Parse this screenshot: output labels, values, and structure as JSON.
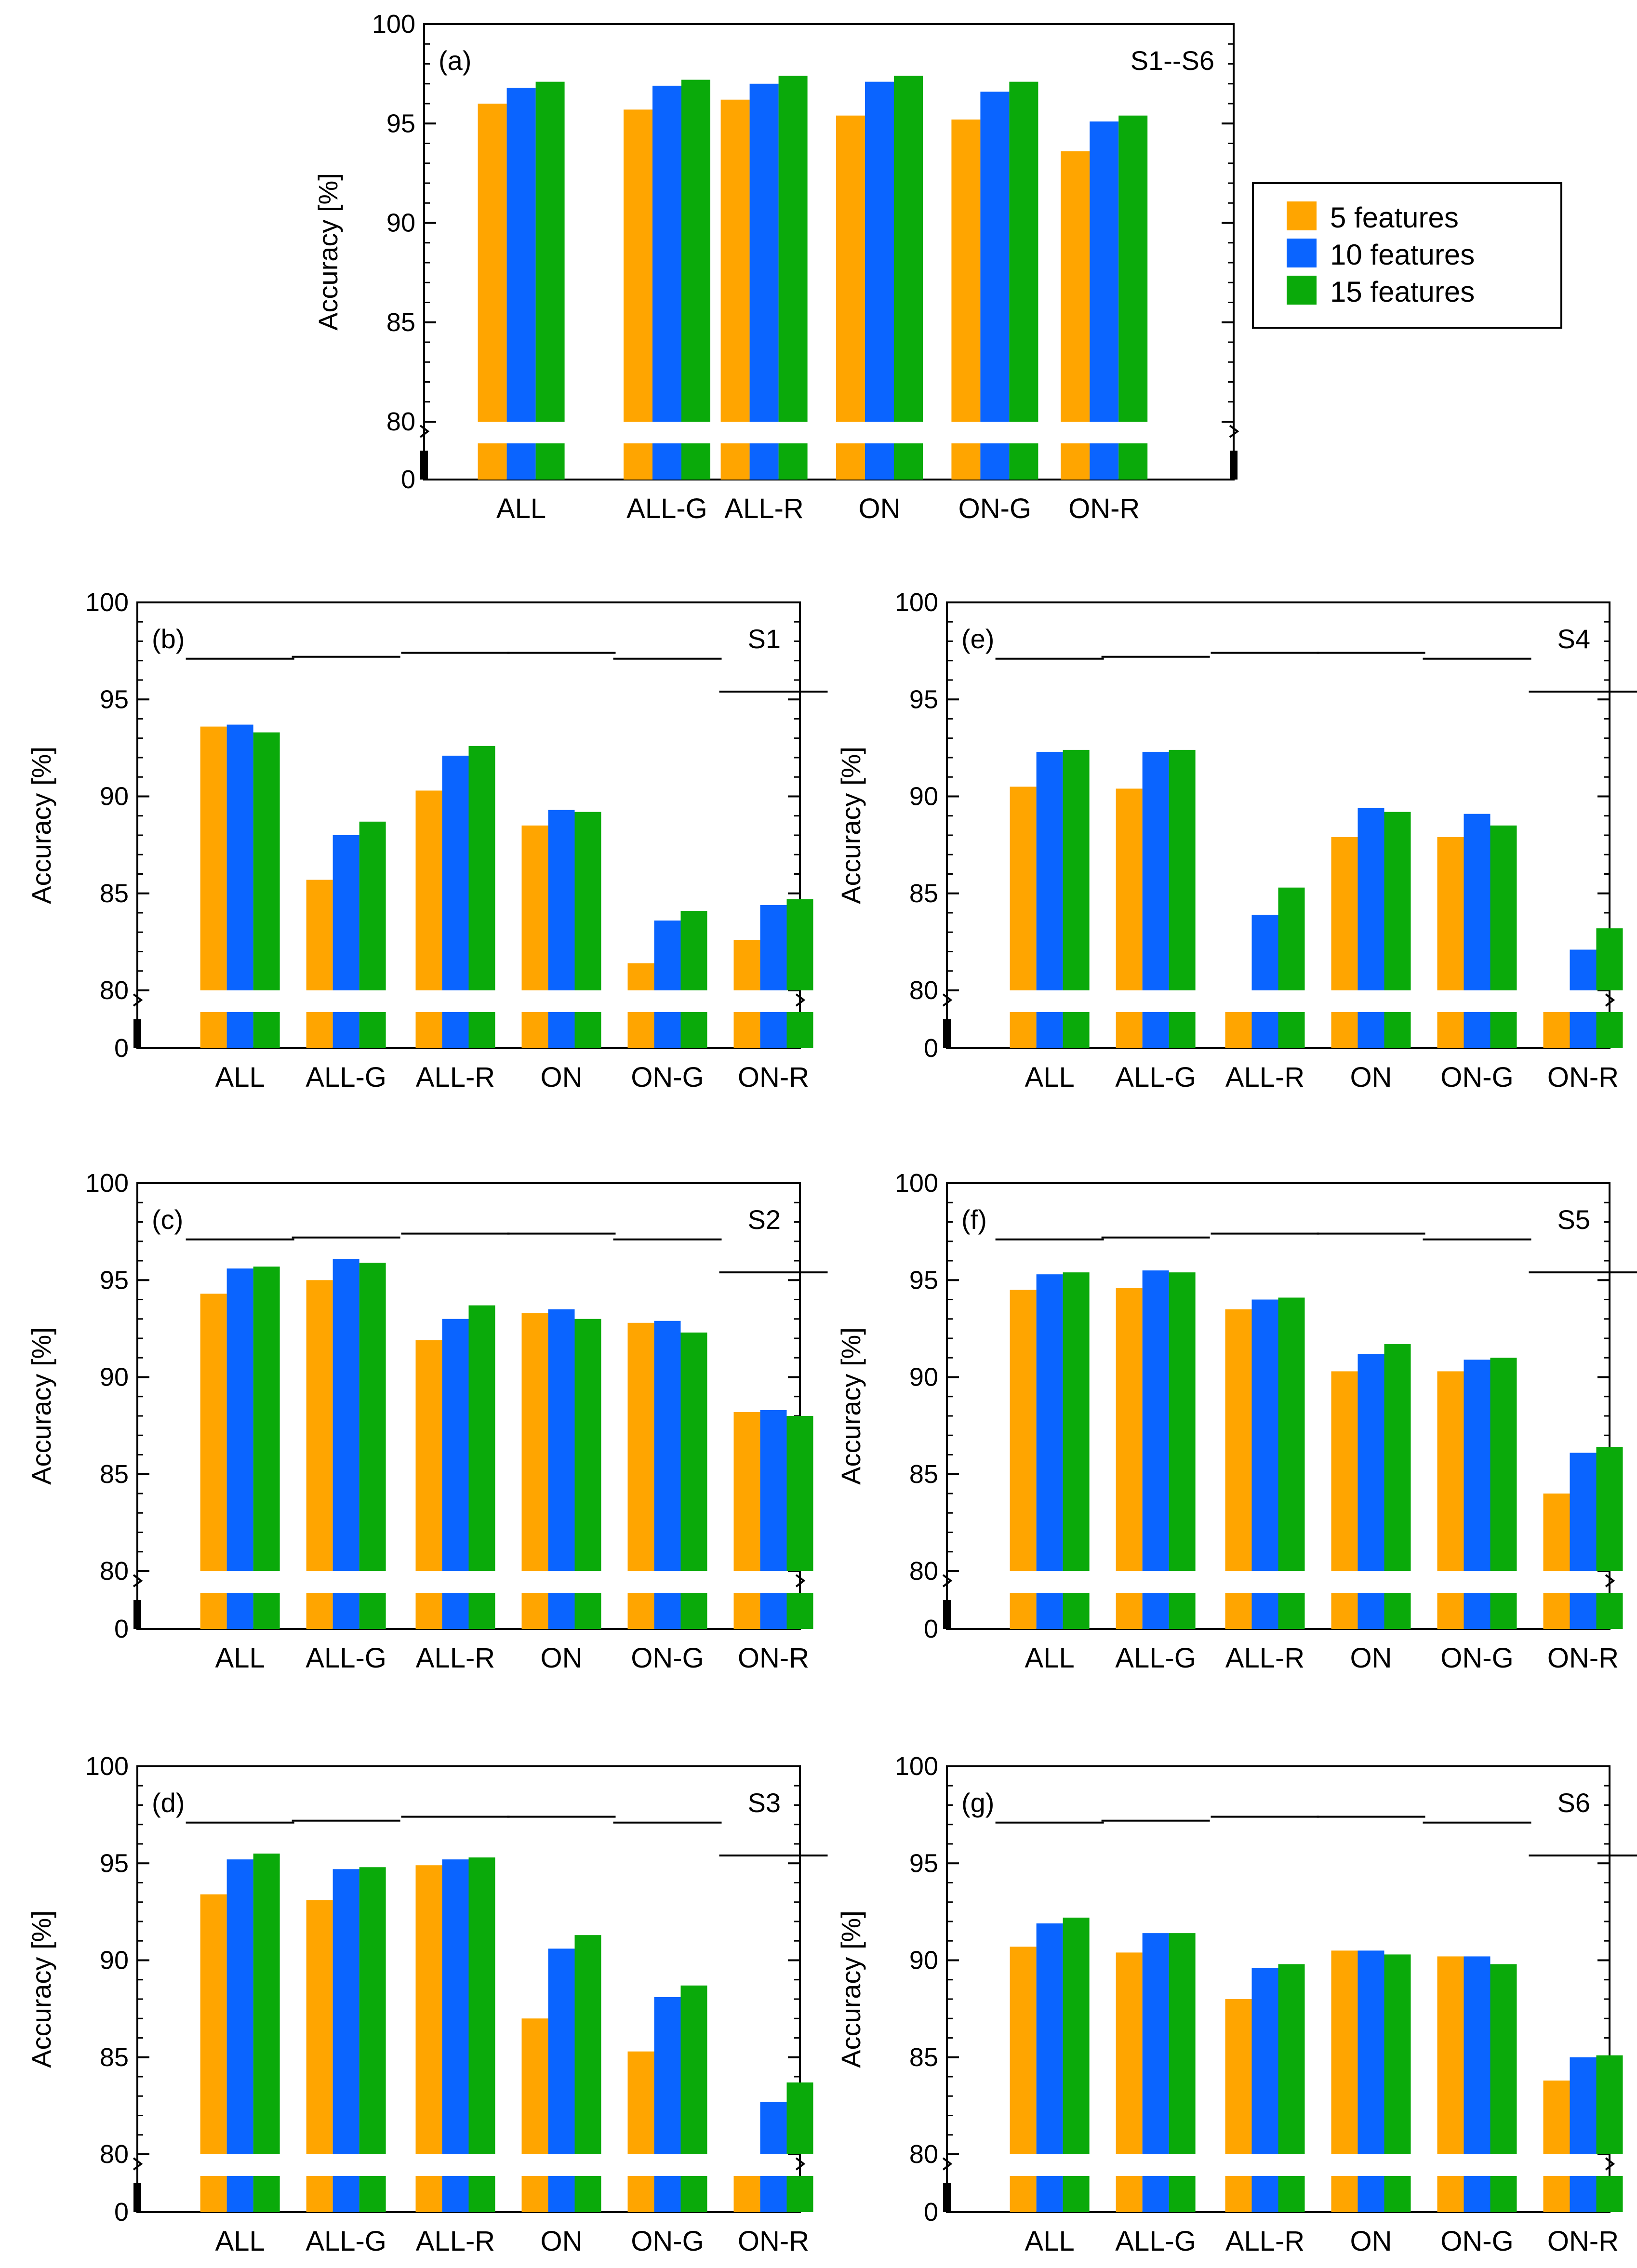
{
  "colors": {
    "s5": "#FFA500",
    "s10": "#0A64FF",
    "s15": "#0AAA0A",
    "s15cap": "#55A80A"
  },
  "legend": [
    "5 features",
    "10 features",
    "15 features"
  ],
  "y_axis_label": "Accuracy [%]",
  "chart_data": [
    {
      "type": "bar",
      "panel": "(a)",
      "subject": "S1--S6",
      "categories": [
        "ALL",
        "ALL-G",
        "ALL-R",
        "ON",
        "ON-G",
        "ON-R"
      ],
      "ylabel": "Accuracy [%]",
      "ylim": [
        80,
        100
      ],
      "yticks": [
        0,
        80,
        85,
        90,
        95,
        100
      ],
      "axis_break": true,
      "series": [
        {
          "name": "5 features",
          "values": [
            96.0,
            95.7,
            96.2,
            95.4,
            95.2,
            93.6
          ]
        },
        {
          "name": "10 features",
          "values": [
            96.8,
            96.9,
            97.0,
            97.1,
            96.6,
            95.1
          ]
        },
        {
          "name": "15 features",
          "values": [
            97.1,
            97.2,
            97.4,
            97.4,
            97.1,
            95.4
          ]
        }
      ]
    },
    {
      "type": "bar",
      "panel": "(b)",
      "subject": "S1",
      "categories": [
        "ALL",
        "ALL-G",
        "ALL-R",
        "ON",
        "ON-G",
        "ON-R"
      ],
      "ylabel": "Accuracy [%]",
      "ylim": [
        80,
        100
      ],
      "yticks": [
        0,
        80,
        85,
        90,
        95,
        100
      ],
      "axis_break": true,
      "reference": [
        97.1,
        97.2,
        97.4,
        97.4,
        97.1,
        95.4
      ],
      "series": [
        {
          "name": "5 features",
          "values": [
            93.6,
            85.7,
            90.3,
            88.5,
            81.4,
            82.6
          ]
        },
        {
          "name": "10 features",
          "values": [
            93.7,
            88.0,
            92.1,
            89.3,
            83.6,
            84.4
          ]
        },
        {
          "name": "15 features",
          "values": [
            93.3,
            88.7,
            92.6,
            89.2,
            84.1,
            84.7
          ]
        }
      ]
    },
    {
      "type": "bar",
      "panel": "(c)",
      "subject": "S2",
      "categories": [
        "ALL",
        "ALL-G",
        "ALL-R",
        "ON",
        "ON-G",
        "ON-R"
      ],
      "ylabel": "Accuracy [%]",
      "ylim": [
        80,
        100
      ],
      "yticks": [
        0,
        80,
        85,
        90,
        95,
        100
      ],
      "axis_break": true,
      "reference": [
        97.1,
        97.2,
        97.4,
        97.4,
        97.1,
        95.4
      ],
      "series": [
        {
          "name": "5 features",
          "values": [
            94.3,
            95.0,
            91.9,
            93.3,
            92.8,
            88.2
          ]
        },
        {
          "name": "10 features",
          "values": [
            95.6,
            96.1,
            93.0,
            93.5,
            92.9,
            88.3
          ]
        },
        {
          "name": "15 features",
          "values": [
            95.7,
            95.9,
            93.7,
            93.0,
            92.3,
            88.0
          ]
        }
      ]
    },
    {
      "type": "bar",
      "panel": "(d)",
      "subject": "S3",
      "categories": [
        "ALL",
        "ALL-G",
        "ALL-R",
        "ON",
        "ON-G",
        "ON-R"
      ],
      "ylabel": "Accuracy [%]",
      "ylim": [
        80,
        100
      ],
      "yticks": [
        0,
        80,
        85,
        90,
        95,
        100
      ],
      "axis_break": true,
      "reference": [
        97.1,
        97.2,
        97.4,
        97.4,
        97.1,
        95.4
      ],
      "series": [
        {
          "name": "5 features",
          "values": [
            93.4,
            93.1,
            94.9,
            87.0,
            85.3,
            79.0
          ]
        },
        {
          "name": "10 features",
          "values": [
            95.2,
            94.7,
            95.2,
            90.6,
            88.1,
            82.7
          ]
        },
        {
          "name": "15 features",
          "values": [
            95.5,
            94.8,
            95.3,
            91.3,
            88.7,
            83.7
          ]
        }
      ]
    },
    {
      "type": "bar",
      "panel": "(e)",
      "subject": "S4",
      "categories": [
        "ALL",
        "ALL-G",
        "ALL-R",
        "ON",
        "ON-G",
        "ON-R"
      ],
      "ylabel": "Accuracy [%]",
      "ylim": [
        80,
        100
      ],
      "yticks": [
        0,
        80,
        85,
        90,
        95,
        100
      ],
      "axis_break": true,
      "reference": [
        97.1,
        97.2,
        97.4,
        97.4,
        97.1,
        95.4
      ],
      "series": [
        {
          "name": "5 features",
          "values": [
            90.5,
            90.4,
            79.0,
            87.9,
            87.9,
            79.0
          ]
        },
        {
          "name": "10 features",
          "values": [
            92.3,
            92.3,
            83.9,
            89.4,
            89.1,
            82.1
          ]
        },
        {
          "name": "15 features",
          "values": [
            92.4,
            92.4,
            85.3,
            89.2,
            88.5,
            83.2
          ]
        }
      ]
    },
    {
      "type": "bar",
      "panel": "(f)",
      "subject": "S5",
      "categories": [
        "ALL",
        "ALL-G",
        "ALL-R",
        "ON",
        "ON-G",
        "ON-R"
      ],
      "ylabel": "Accuracy [%]",
      "ylim": [
        80,
        100
      ],
      "yticks": [
        0,
        80,
        85,
        90,
        95,
        100
      ],
      "axis_break": true,
      "reference": [
        97.1,
        97.2,
        97.4,
        97.4,
        97.1,
        95.4
      ],
      "series": [
        {
          "name": "5 features",
          "values": [
            94.5,
            94.6,
            93.5,
            90.3,
            90.3,
            84.0
          ]
        },
        {
          "name": "10 features",
          "values": [
            95.3,
            95.5,
            94.0,
            91.2,
            90.9,
            86.1
          ]
        },
        {
          "name": "15 features",
          "values": [
            95.4,
            95.4,
            94.1,
            91.7,
            91.0,
            86.4
          ]
        }
      ]
    },
    {
      "type": "bar",
      "panel": "(g)",
      "subject": "S6",
      "categories": [
        "ALL",
        "ALL-G",
        "ALL-R",
        "ON",
        "ON-G",
        "ON-R"
      ],
      "ylabel": "Accuracy [%]",
      "ylim": [
        80,
        100
      ],
      "yticks": [
        0,
        80,
        85,
        90,
        95,
        100
      ],
      "axis_break": true,
      "reference": [
        97.1,
        97.2,
        97.4,
        97.4,
        97.1,
        95.4
      ],
      "series": [
        {
          "name": "5 features",
          "values": [
            90.7,
            90.4,
            88.0,
            90.5,
            90.2,
            83.8
          ]
        },
        {
          "name": "10 features",
          "values": [
            91.9,
            91.4,
            89.6,
            90.5,
            90.2,
            85.0
          ]
        },
        {
          "name": "15 features",
          "values": [
            92.2,
            91.4,
            89.8,
            90.3,
            89.8,
            85.1
          ]
        }
      ]
    }
  ]
}
